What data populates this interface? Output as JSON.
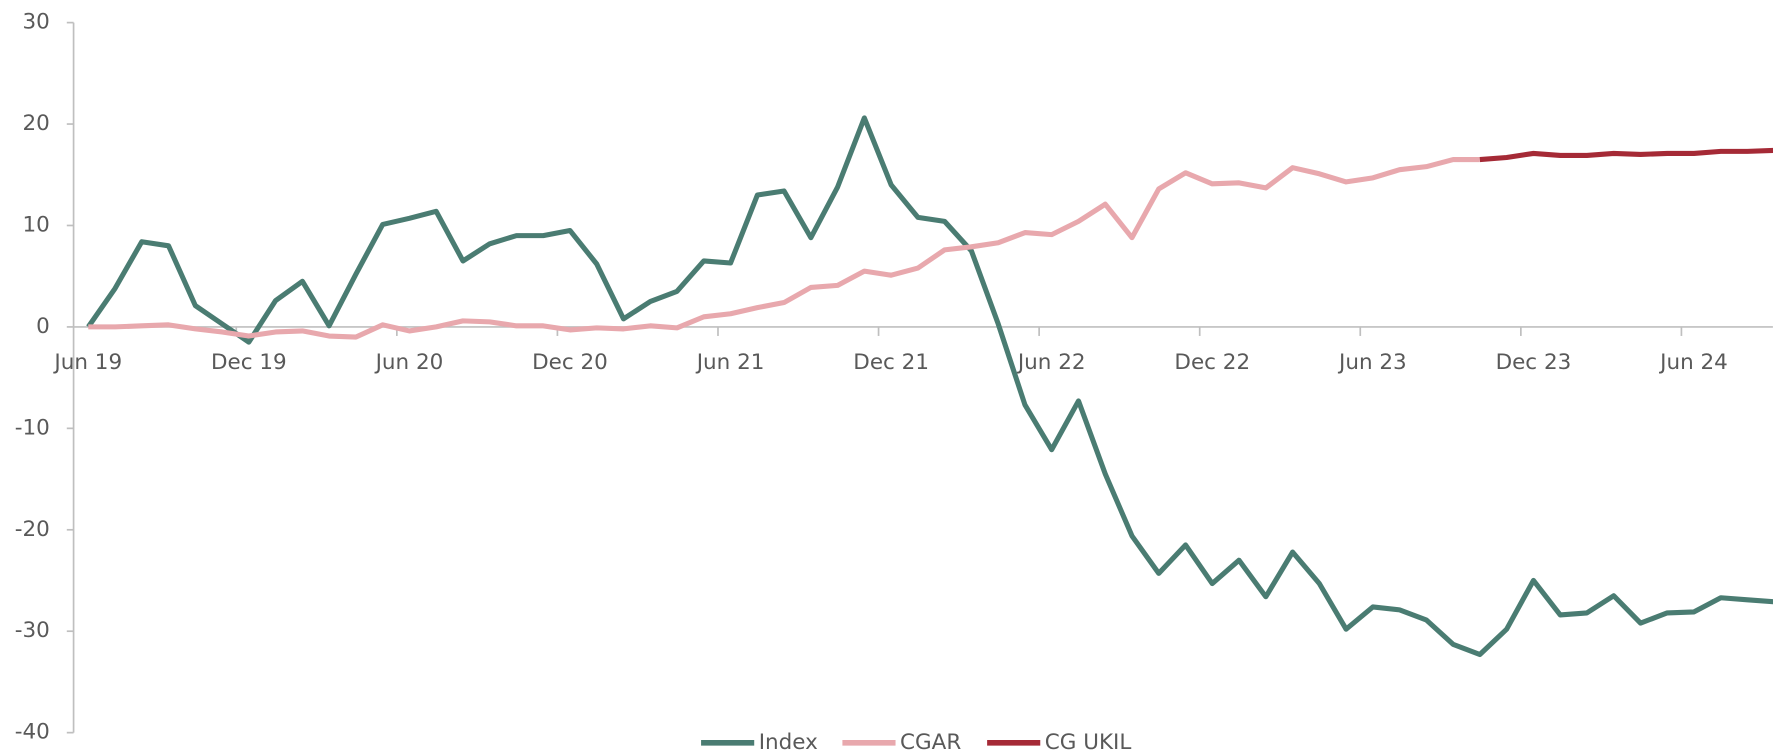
{
  "chart_data": {
    "type": "line",
    "categories": [
      "Jun 19",
      null,
      null,
      null,
      null,
      null,
      "Dec 19",
      null,
      null,
      null,
      null,
      null,
      "Jun 20",
      null,
      null,
      null,
      null,
      null,
      "Dec 20",
      null,
      null,
      null,
      null,
      null,
      "Jun 21",
      null,
      null,
      null,
      null,
      null,
      "Dec 21",
      null,
      null,
      null,
      null,
      null,
      "Jun 22",
      null,
      null,
      null,
      null,
      null,
      "Dec 22",
      null,
      null,
      null,
      null,
      null,
      "Jun 23",
      null,
      null,
      null,
      null,
      null,
      "Dec 23",
      null,
      null,
      null,
      null,
      null,
      "Jun 24",
      null,
      null,
      null
    ],
    "series": [
      {
        "name": "Index",
        "color": "#4a7c72",
        "values": [
          0,
          3.8,
          8.4,
          8.0,
          2.1,
          0.3,
          -1.5,
          2.6,
          4.5,
          0.1,
          5.2,
          10.1,
          10.7,
          11.4,
          6.5,
          8.2,
          9.0,
          9.0,
          9.5,
          6.2,
          0.8,
          2.5,
          3.5,
          6.5,
          6.3,
          13.0,
          13.4,
          8.8,
          13.8,
          20.6,
          14.0,
          10.8,
          10.4,
          7.5,
          0.3,
          -7.7,
          -12.1,
          -7.3,
          -14.5,
          -20.6,
          -24.3,
          -21.5,
          -25.3,
          -23.0,
          -26.6,
          -22.2,
          -25.3,
          -29.8,
          -27.6,
          -27.9,
          -28.9,
          -31.3,
          -32.3,
          -29.8,
          -25.0,
          -28.4,
          -28.2,
          -26.5,
          -29.2,
          -28.2,
          -28.1,
          -26.7,
          -26.9,
          -27.1
        ]
      },
      {
        "name": "CGAR",
        "color": "#e8a8ad",
        "values": [
          0,
          0,
          0.1,
          0.2,
          -0.2,
          -0.5,
          -0.9,
          -0.5,
          -0.4,
          -0.9,
          -1.0,
          0.2,
          -0.4,
          0,
          0.6,
          0.5,
          0.1,
          0.1,
          -0.3,
          -0.1,
          -0.2,
          0.1,
          -0.1,
          1.0,
          1.3,
          1.9,
          2.4,
          3.9,
          4.1,
          5.5,
          5.1,
          5.8,
          7.6,
          7.9,
          8.3,
          9.3,
          9.1,
          10.4,
          12.1,
          8.8,
          13.6,
          15.2,
          14.1,
          14.2,
          13.7,
          15.7,
          15.1,
          14.3,
          14.7,
          15.5,
          15.8,
          16.5,
          16.5,
          null,
          null,
          null,
          null,
          null,
          null,
          null,
          null,
          null,
          null,
          null
        ]
      },
      {
        "name": "CG UKIL",
        "color": "#a52a36",
        "values": [
          null,
          null,
          null,
          null,
          null,
          null,
          null,
          null,
          null,
          null,
          null,
          null,
          null,
          null,
          null,
          null,
          null,
          null,
          null,
          null,
          null,
          null,
          null,
          null,
          null,
          null,
          null,
          null,
          null,
          null,
          null,
          null,
          null,
          null,
          null,
          null,
          null,
          null,
          null,
          null,
          null,
          null,
          null,
          null,
          null,
          null,
          null,
          null,
          null,
          null,
          null,
          null,
          16.5,
          16.7,
          17.1,
          16.9,
          16.9,
          17.1,
          17.0,
          17.1,
          17.1,
          17.3,
          17.3,
          17.4
        ]
      }
    ],
    "ylim": [
      -40,
      30
    ],
    "yticks": [
      -40,
      -30,
      -20,
      -10,
      0,
      10,
      20,
      30
    ],
    "legend": "bottom"
  }
}
